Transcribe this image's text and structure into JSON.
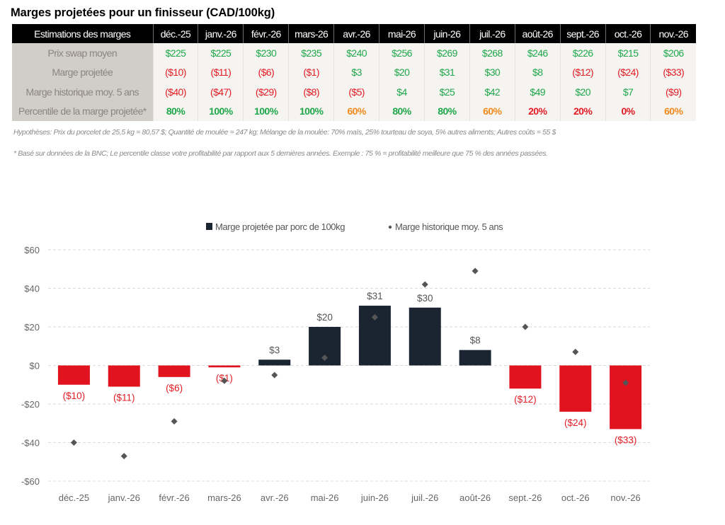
{
  "title": "Marges projetées pour un finisseur (CAD/100kg)",
  "table": {
    "header_label": "Estimations des marges",
    "columns": [
      "déc.-25",
      "janv.-26",
      "févr.-26",
      "mars-26",
      "avr.-26",
      "mai-26",
      "juin-26",
      "juil.-26",
      "août-26",
      "sept.-26",
      "oct.-26",
      "nov.-26"
    ],
    "rows": [
      {
        "label": "Prix swap moyen",
        "values": [
          "$225",
          "$225",
          "$230",
          "$235",
          "$240",
          "$256",
          "$269",
          "$268",
          "$246",
          "$226",
          "$215",
          "$206"
        ],
        "tones": [
          "pos",
          "pos",
          "pos",
          "pos",
          "pos",
          "pos",
          "pos",
          "pos",
          "pos",
          "pos",
          "pos",
          "pos"
        ]
      },
      {
        "label": "Marge projetée",
        "values": [
          "($10)",
          "($11)",
          "($6)",
          "($1)",
          "$3",
          "$20",
          "$31",
          "$30",
          "$8",
          "($12)",
          "($24)",
          "($33)"
        ],
        "tones": [
          "neg",
          "neg",
          "neg",
          "neg",
          "pos",
          "pos",
          "pos",
          "pos",
          "pos",
          "neg",
          "neg",
          "neg"
        ]
      },
      {
        "label": "Marge historique moy. 5 ans",
        "values": [
          "($40)",
          "($47)",
          "($29)",
          "($8)",
          "($5)",
          "$4",
          "$25",
          "$42",
          "$49",
          "$20",
          "$7",
          "($9)"
        ],
        "tones": [
          "neg",
          "neg",
          "neg",
          "neg",
          "neg",
          "pos",
          "pos",
          "pos",
          "pos",
          "pos",
          "pos",
          "neg"
        ]
      },
      {
        "label": "Percentile de la marge projetée*",
        "values": [
          "80%",
          "100%",
          "100%",
          "100%",
          "60%",
          "80%",
          "80%",
          "60%",
          "20%",
          "20%",
          "0%",
          "60%"
        ],
        "tones": [
          "pct-high",
          "pct-high",
          "pct-high",
          "pct-high",
          "pct-mid",
          "pct-high",
          "pct-high",
          "pct-mid",
          "pct-low",
          "pct-low",
          "pct-low",
          "pct-mid"
        ]
      }
    ]
  },
  "notes": {
    "hypotheses": "Hypothèses: Prix du porcelet de 25,5 kg = 80,57 $; Quantité de moulée = 247 kg; Mélange de la moulée: 70% maïs, 25% tourteau de soya, 5% autres aliments; Autres coûts = 55 $",
    "footnote": "* Basé sur données de la BNC; Le percentile classe votre profitabilité par rapport aux 5 dernières années. Exemple : 75 % = profitabilité meilleure que 75 % des années passées."
  },
  "colors": {
    "positive_bar": "#1a2531",
    "negative_bar": "#e0131f",
    "diamond": "#555555",
    "positive_text": "#1fa74a",
    "negative_text": "#e31b23",
    "mid_text": "#f08a1c"
  },
  "chart_data": {
    "type": "bar",
    "title": "",
    "xlabel": "",
    "ylabel": "",
    "categories": [
      "déc.-25",
      "janv.-26",
      "févr.-26",
      "mars-26",
      "avr.-26",
      "mai-26",
      "juin-26",
      "juil.-26",
      "août-26",
      "sept.-26",
      "oct.-26",
      "nov.-26"
    ],
    "series": [
      {
        "name": "Marge projetée par porc de 100kg",
        "type": "bar",
        "values": [
          -10,
          -11,
          -6,
          -1,
          3,
          20,
          31,
          30,
          8,
          -12,
          -24,
          -33
        ],
        "labels": [
          "($10)",
          "($11)",
          "($6)",
          "($1)",
          "$3",
          "$20",
          "$31",
          "$30",
          "$8",
          "($12)",
          "($24)",
          "($33)"
        ]
      },
      {
        "name": "Marge historique moy. 5 ans",
        "type": "scatter",
        "marker": "diamond",
        "values": [
          -40,
          -47,
          -29,
          -8,
          -5,
          4,
          25,
          42,
          49,
          20,
          7,
          -9
        ]
      }
    ],
    "ylim": [
      -60,
      60
    ],
    "yticks": [
      60,
      40,
      20,
      0,
      -20,
      -40,
      -60
    ],
    "ytick_labels": [
      "$60",
      "$40",
      "$20",
      "$0",
      "-$20",
      "-$40",
      "-$60"
    ],
    "grid": true,
    "legend": "top-center"
  }
}
